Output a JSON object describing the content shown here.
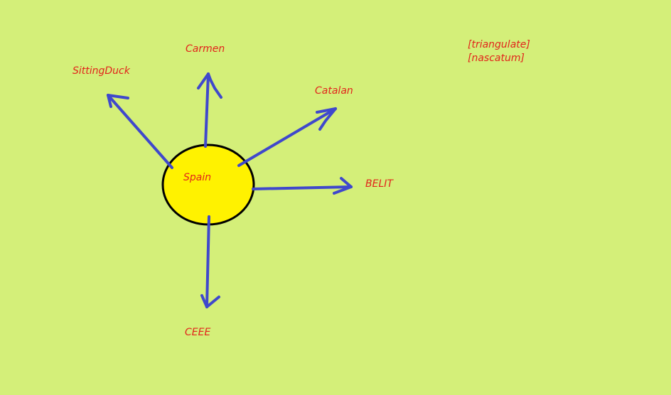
{
  "diagram": {
    "center": {
      "label": "Spain",
      "fill": "#fff200",
      "stroke": "#000000"
    },
    "arrow_color": "#3f48cc",
    "label_color": "#e2241b",
    "background": "#d4ef79",
    "nodes": [
      {
        "id": "sittingduck",
        "label": "SittingDuck"
      },
      {
        "id": "carmen",
        "label": "Carmen"
      },
      {
        "id": "catalan",
        "label": "Catalan"
      },
      {
        "id": "belit",
        "label": "BELIT"
      },
      {
        "id": "ceee",
        "label": "CEEE"
      }
    ],
    "notes": [
      "[triangulate]",
      "[nascatum]"
    ]
  }
}
